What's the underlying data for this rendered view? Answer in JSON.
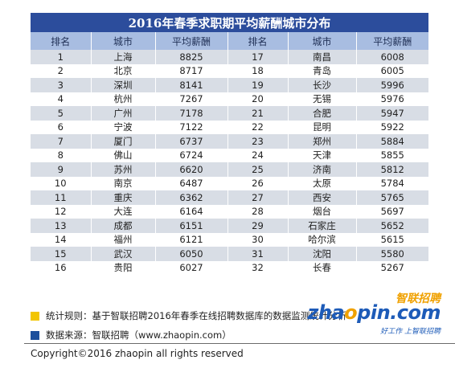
{
  "title": "2016年春季求职期平均薪酬城市分布",
  "headers": [
    "排名",
    "城市",
    "平均薪酬",
    "排名",
    "城市",
    "平均薪酬"
  ],
  "rows": [
    [
      "1",
      "上海",
      "8825",
      "17",
      "南昌",
      "6008"
    ],
    [
      "2",
      "北京",
      "8717",
      "18",
      "青岛",
      "6005"
    ],
    [
      "3",
      "深圳",
      "8141",
      "19",
      "长沙",
      "5996"
    ],
    [
      "4",
      "杭州",
      "7267",
      "20",
      "无锡",
      "5976"
    ],
    [
      "5",
      "广州",
      "7178",
      "21",
      "合肥",
      "5947"
    ],
    [
      "6",
      "宁波",
      "7122",
      "22",
      "昆明",
      "5922"
    ],
    [
      "7",
      "厦门",
      "6737",
      "23",
      "郑州",
      "5884"
    ],
    [
      "8",
      "佛山",
      "6724",
      "24",
      "天津",
      "5855"
    ],
    [
      "9",
      "苏州",
      "6620",
      "25",
      "济南",
      "5812"
    ],
    [
      "10",
      "南京",
      "6487",
      "26",
      "太原",
      "5784"
    ],
    [
      "11",
      "重庆",
      "6362",
      "27",
      "西安",
      "5765"
    ],
    [
      "12",
      "大连",
      "6164",
      "28",
      "烟台",
      "5697"
    ],
    [
      "13",
      "成都",
      "6151",
      "29",
      "石家庄",
      "5652"
    ],
    [
      "14",
      "福州",
      "6121",
      "30",
      "哈尔滨",
      "5615"
    ],
    [
      "15",
      "武汉",
      "6050",
      "31",
      "沈阳",
      "5580"
    ],
    [
      "16",
      "贵阳",
      "6027",
      "32",
      "长春",
      "5267"
    ]
  ],
  "legend": {
    "rule": "统计规则：基于智联招聘2016年春季在线招聘数据库的数据监测统计分析",
    "rule_color": "#f2c500",
    "source": "数据来源：智联招聘（www.zhaopin.com）",
    "source_color": "#1d4f9c"
  },
  "copyright": "Copyright©2016 zhaopin all rights reserved",
  "logo": {
    "cn": "智联招聘",
    "en_a": "zha",
    "en_o": "o",
    "en_b": "pin.com",
    "sub": "好工作 上智联招聘"
  },
  "colors": {
    "title_bg": "#2c4d9c",
    "header_bg": "#a8bde1",
    "row_alt": "#d8dde5"
  }
}
